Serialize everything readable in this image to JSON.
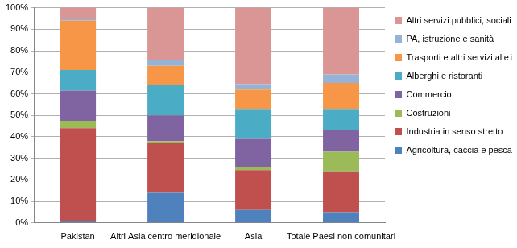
{
  "chart_data": {
    "type": "bar",
    "stacked": true,
    "grid": true,
    "legend": "right",
    "categories": [
      "Pakistan",
      "Altri Asia centro meridionale",
      "Asia",
      "Totale Paesi non comunitari"
    ],
    "ylim": [
      0,
      100
    ],
    "yticks": [
      {
        "value": 0,
        "label": "0%"
      },
      {
        "value": 10,
        "label": "10%"
      },
      {
        "value": 20,
        "label": "20%"
      },
      {
        "value": 30,
        "label": "30%"
      },
      {
        "value": 40,
        "label": "40%"
      },
      {
        "value": 50,
        "label": "50%"
      },
      {
        "value": 60,
        "label": "60%"
      },
      {
        "value": 70,
        "label": "70%"
      },
      {
        "value": 80,
        "label": "80%"
      },
      {
        "value": 90,
        "label": "90%"
      },
      {
        "value": 100,
        "label": "100%"
      }
    ],
    "series": [
      {
        "name": "Agricoltura, caccia e pesca",
        "color": "#4f81bd",
        "values": [
          1,
          14,
          6,
          5
        ]
      },
      {
        "name": "Industria in senso stretto",
        "color": "#c0504d",
        "values": [
          43,
          23,
          18.5,
          19
        ]
      },
      {
        "name": "Costruzioni",
        "color": "#9bbb59",
        "values": [
          3.5,
          1,
          1.5,
          9
        ]
      },
      {
        "name": "Commercio",
        "color": "#8064a2",
        "values": [
          14,
          12,
          13,
          10
        ]
      },
      {
        "name": "Alberghi e ristoranti",
        "color": "#4bacc6",
        "values": [
          9.5,
          14,
          14,
          10
        ]
      },
      {
        "name": "Trasporti e altri servizi alle imprese",
        "color": "#f79646",
        "values": [
          23,
          9,
          9,
          12
        ]
      },
      {
        "name": "PA, istruzione e sanità",
        "color": "#95b3d7",
        "values": [
          1,
          2.5,
          2.5,
          4
        ]
      },
      {
        "name": "Altri servizi pubblici, sociali e alle persone",
        "color": "#d99694",
        "values": [
          5,
          24.5,
          35.5,
          31
        ]
      }
    ]
  }
}
